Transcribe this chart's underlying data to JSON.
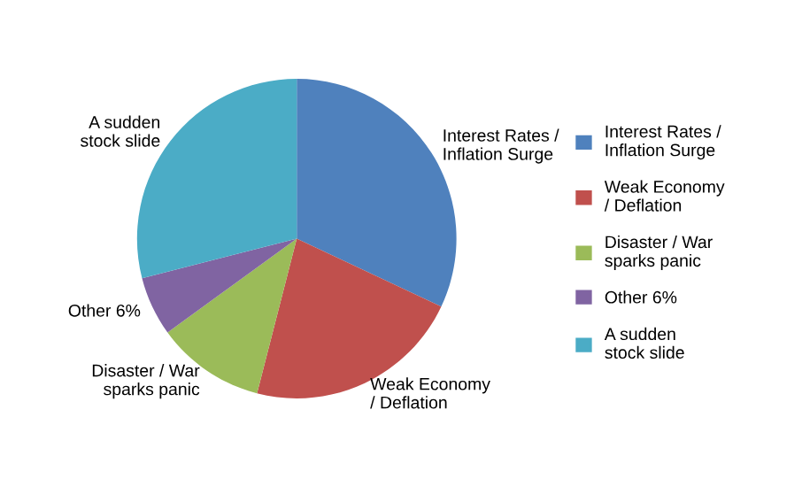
{
  "chart_data": {
    "type": "pie",
    "categories": [
      "Interest Rates / Inflation Surge",
      "Weak Economy / Deflation",
      "Disaster / War sparks panic",
      "Other 6%",
      "A sudden stock slide"
    ],
    "values": [
      32,
      22,
      11,
      6,
      29
    ],
    "colors": [
      "#4f81bd",
      "#c0504d",
      "#9bbb59",
      "#8064a2",
      "#4bacc6"
    ],
    "legend": "right"
  }
}
